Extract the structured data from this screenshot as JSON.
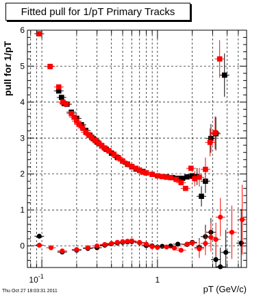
{
  "title": "Fitted pull for 1/pT  Primary Tracks",
  "timestamp": "Thu Oct 27 18:03:31 2011",
  "chart_data": {
    "type": "scatter",
    "title": "Fitted pull for 1/pT  Primary Tracks",
    "xlabel": "pT (GeV/c)",
    "ylabel": "pull for 1/pT",
    "x_scale": "log",
    "xlim": [
      0.075,
      5.9
    ],
    "ylim": [
      -0.6,
      6.0
    ],
    "x_tick_labels": [
      {
        "value": 0.1,
        "label": "10",
        "sup": "-1"
      },
      {
        "value": 1,
        "label": "1",
        "sup": ""
      }
    ],
    "y_ticks": [
      0,
      1,
      2,
      3,
      4,
      5,
      6
    ],
    "grid": true,
    "series": [
      {
        "color": "#000000",
        "points": [
          [
            0.095,
            5.9
          ],
          [
            0.118,
            4.99
          ],
          [
            0.14,
            4.31
          ],
          [
            0.148,
            4.13
          ],
          [
            0.156,
            3.96
          ],
          [
            0.165,
            3.94
          ],
          [
            0.18,
            3.72
          ],
          [
            0.2,
            3.55
          ],
          [
            0.22,
            3.37
          ],
          [
            0.24,
            3.21
          ],
          [
            0.26,
            3.08
          ],
          [
            0.28,
            2.98
          ],
          [
            0.3,
            2.89
          ],
          [
            0.33,
            2.78
          ],
          [
            0.36,
            2.69
          ],
          [
            0.4,
            2.58
          ],
          [
            0.45,
            2.46
          ],
          [
            0.5,
            2.36
          ],
          [
            0.55,
            2.27
          ],
          [
            0.6,
            2.2
          ],
          [
            0.65,
            2.14
          ],
          [
            0.7,
            2.1
          ],
          [
            0.75,
            2.07
          ],
          [
            0.8,
            2.03
          ],
          [
            0.9,
            1.99
          ],
          [
            1.0,
            1.95
          ],
          [
            1.1,
            1.93
          ],
          [
            1.2,
            1.92
          ],
          [
            1.35,
            1.9
          ],
          [
            1.5,
            1.88
          ],
          [
            1.65,
            1.88
          ],
          [
            1.8,
            1.92
          ],
          [
            2.0,
            1.95
          ],
          [
            2.2,
            1.93
          ],
          [
            2.4,
            1.38
          ],
          [
            2.6,
            1.8
          ],
          [
            2.9,
            2.99
          ],
          [
            3.2,
            3.12
          ],
          [
            3.8,
            4.75
          ]
        ]
      },
      {
        "color": "#ff0000",
        "points": [
          [
            0.095,
            5.9
          ],
          [
            0.118,
            4.99
          ],
          [
            0.14,
            4.42
          ],
          [
            0.152,
            4.0
          ],
          [
            0.162,
            3.95
          ],
          [
            0.18,
            3.68
          ],
          [
            0.19,
            3.58
          ],
          [
            0.2,
            3.47
          ],
          [
            0.21,
            3.38
          ],
          [
            0.225,
            3.28
          ],
          [
            0.24,
            3.16
          ],
          [
            0.255,
            3.09
          ],
          [
            0.27,
            3.01
          ],
          [
            0.29,
            2.93
          ],
          [
            0.31,
            2.86
          ],
          [
            0.33,
            2.79
          ],
          [
            0.35,
            2.72
          ],
          [
            0.38,
            2.65
          ],
          [
            0.42,
            2.55
          ],
          [
            0.46,
            2.45
          ],
          [
            0.5,
            2.36
          ],
          [
            0.55,
            2.28
          ],
          [
            0.6,
            2.21
          ],
          [
            0.65,
            2.16
          ],
          [
            0.7,
            2.11
          ],
          [
            0.75,
            2.05
          ],
          [
            0.8,
            2.03
          ],
          [
            0.9,
            1.99
          ],
          [
            1.0,
            1.95
          ],
          [
            1.1,
            1.93
          ],
          [
            1.2,
            1.91
          ],
          [
            1.3,
            1.9
          ],
          [
            1.45,
            1.85
          ],
          [
            1.6,
            1.76
          ],
          [
            1.75,
            1.6
          ],
          [
            1.95,
            2.16
          ],
          [
            2.1,
            1.87
          ],
          [
            2.3,
            1.91
          ],
          [
            2.6,
            2.13
          ],
          [
            2.85,
            2.88
          ],
          [
            3.15,
            3.15
          ],
          [
            3.45,
            5.2
          ]
        ]
      },
      {
        "color": "#000000",
        "points": [
          [
            0.095,
            0.27
          ],
          [
            0.15,
            -0.17
          ],
          [
            0.2,
            -0.12
          ],
          [
            0.25,
            -0.07
          ],
          [
            0.3,
            -0.05
          ],
          [
            0.35,
            0.02
          ],
          [
            0.4,
            0.06
          ],
          [
            0.45,
            0.08
          ],
          [
            0.5,
            0.1
          ],
          [
            0.55,
            0.11
          ],
          [
            0.6,
            0.12
          ],
          [
            0.7,
            0.09
          ],
          [
            0.8,
            0.01
          ],
          [
            0.9,
            0.0
          ],
          [
            1.0,
            -0.03
          ],
          [
            1.1,
            -0.01
          ],
          [
            1.3,
            0.0
          ],
          [
            1.5,
            0.05
          ],
          [
            1.8,
            0.04
          ],
          [
            2.0,
            0.1
          ],
          [
            2.3,
            -0.04
          ],
          [
            2.6,
            0.26
          ],
          [
            2.9,
            0.38
          ],
          [
            3.2,
            -0.38
          ],
          [
            3.5,
            -0.58
          ],
          [
            3.9,
            -0.18
          ],
          [
            5.3,
            0.08
          ]
        ]
      },
      {
        "color": "#ff0000",
        "points": [
          [
            0.095,
            0.02
          ],
          [
            0.12,
            -0.05
          ],
          [
            0.15,
            -0.14
          ],
          [
            0.2,
            -0.1
          ],
          [
            0.25,
            -0.05
          ],
          [
            0.3,
            0.0
          ],
          [
            0.35,
            0.04
          ],
          [
            0.4,
            0.07
          ],
          [
            0.45,
            0.1
          ],
          [
            0.5,
            0.12
          ],
          [
            0.55,
            0.13
          ],
          [
            0.6,
            0.14
          ],
          [
            0.7,
            0.1
          ],
          [
            0.8,
            0.05
          ],
          [
            0.9,
            -0.02
          ],
          [
            1.0,
            -0.04
          ],
          [
            1.2,
            -0.03
          ],
          [
            1.4,
            -0.06
          ],
          [
            1.6,
            -0.12
          ],
          [
            1.8,
            0.05
          ],
          [
            2.0,
            0.08
          ],
          [
            2.3,
            -0.08
          ],
          [
            2.6,
            0.07
          ],
          [
            2.9,
            0.24
          ],
          [
            3.2,
            0.18
          ],
          [
            3.5,
            0.8
          ],
          [
            4.4,
            0.38
          ],
          [
            5.4,
            0.73
          ]
        ]
      }
    ]
  }
}
